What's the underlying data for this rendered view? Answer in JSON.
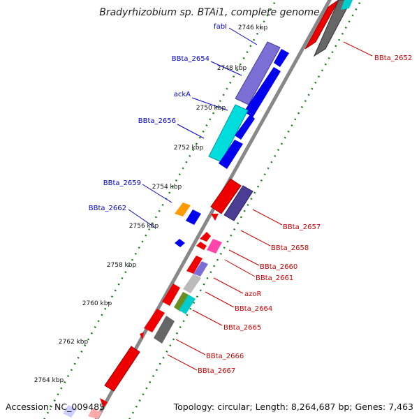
{
  "title": "Bradyrhizobium sp. BTAi1, complete genome",
  "footer": {
    "accession": "Accession: NC_009485",
    "info": "Topology: circular; Length: 8,264,687 bp; Genes: 7,463"
  },
  "colors": {
    "blue_label": "#0000cc",
    "red_label": "#cc0000",
    "ruler": "#1a7a1a",
    "backbone": "#888888"
  },
  "scale_labels": [
    "2746 kbp",
    "2748 kbp",
    "2750 kbp",
    "2752 kbp",
    "2754 kbp",
    "2756 kbp",
    "2758 kbp",
    "2760 kbp",
    "2762 kbp",
    "2764 kbp"
  ],
  "genes_left": [
    "fabI",
    "BBta_2654",
    "ackA",
    "BBta_2656",
    "BBta_2659",
    "BBta_2662"
  ],
  "genes_right": [
    "BBta_2652",
    "BBta_2657",
    "BBta_2658",
    "BBta_2660",
    "BBta_2661",
    "azoR",
    "BBta_2664",
    "BBta_2665",
    "BBta_2666",
    "BBta_2667"
  ]
}
